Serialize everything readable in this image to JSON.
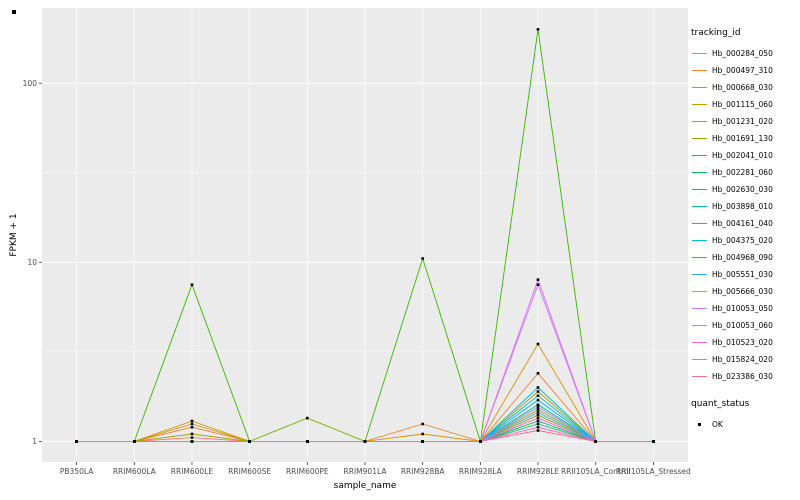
{
  "chart_data": {
    "type": "line",
    "title": "",
    "xlabel": "sample_name",
    "ylabel": "FPKM + 1",
    "y_scale": "log10",
    "y_ticks": [
      1,
      10,
      100
    ],
    "y_minor_ticks": [
      3.162,
      31.62
    ],
    "ylim": [
      0.77,
      263
    ],
    "grid": true,
    "panel_color": "#EBEBEB",
    "grid_color": "#FFFFFF",
    "point_color": "#000000",
    "tick_label_color": "#4D4D4D",
    "legend_position": "right",
    "legend_title": "tracking_id",
    "categories": [
      "PB350LA",
      "RRIM600LA",
      "RRIM600LE",
      "RRIM600SE",
      "RRIM600PE",
      "RRIM901LA",
      "RRIM928BA",
      "RRIM928LA",
      "RRIM928LE",
      "RRII105LA_Control",
      "RRII105LA_Stressed"
    ],
    "series": [
      {
        "name": "Hb_000284_050",
        "color": "#F8766D",
        "values": [
          1,
          1,
          1.05,
          1,
          1,
          1,
          1,
          1,
          1.6,
          1,
          1
        ]
      },
      {
        "name": "Hb_000497_310",
        "color": "#EA8331",
        "values": [
          1,
          1,
          1.2,
          1,
          1,
          1,
          1.25,
          1,
          2.4,
          1,
          1
        ]
      },
      {
        "name": "Hb_000668_030",
        "color": "#D89000",
        "values": [
          1,
          1,
          1.3,
          1,
          1,
          1,
          1.1,
          1,
          3.5,
          1,
          1
        ]
      },
      {
        "name": "Hb_001115_060",
        "color": "#C09B00",
        "values": [
          1,
          1,
          1.25,
          1,
          1,
          1,
          1,
          1,
          1.9,
          1,
          1
        ]
      },
      {
        "name": "Hb_001231_020",
        "color": "#A3A500",
        "values": [
          1,
          1,
          1.1,
          1,
          1,
          1,
          1,
          1,
          1.5,
          1,
          1
        ]
      },
      {
        "name": "Hb_001691_130",
        "color": "#7CAE00",
        "values": [
          1,
          1,
          1,
          1,
          1.35,
          1,
          1,
          1,
          1.4,
          1,
          1
        ]
      },
      {
        "name": "Hb_002041_010",
        "color": "#39B600",
        "values": [
          1,
          1,
          7.5,
          1,
          1,
          1,
          10.5,
          1,
          200,
          1,
          1
        ]
      },
      {
        "name": "Hb_002281_060",
        "color": "#00BB4E",
        "values": [
          1,
          1,
          1,
          1,
          1,
          1,
          1,
          1,
          1.3,
          1,
          1
        ]
      },
      {
        "name": "Hb_002630_030",
        "color": "#00BF7D",
        "values": [
          1,
          1,
          1,
          1,
          1,
          1,
          1,
          1,
          1.25,
          1,
          1
        ]
      },
      {
        "name": "Hb_003898_010",
        "color": "#00C1A3",
        "values": [
          1,
          1,
          1,
          1,
          1,
          1,
          1,
          1,
          1.6,
          1,
          1
        ]
      },
      {
        "name": "Hb_004161_040",
        "color": "#00BFC4",
        "values": [
          1,
          1,
          1,
          1,
          1,
          1,
          1,
          1,
          1.8,
          1,
          1
        ]
      },
      {
        "name": "Hb_004375_020",
        "color": "#00BAE0",
        "values": [
          1,
          1,
          1,
          1,
          1,
          1,
          1,
          1,
          2.0,
          1,
          1
        ]
      },
      {
        "name": "Hb_004968_090",
        "color": "#00B0F6",
        "values": [
          1,
          1,
          1,
          1,
          1,
          1,
          1,
          1,
          1.7,
          1,
          1
        ]
      },
      {
        "name": "Hb_005551_030",
        "color": "#35A2FF",
        "values": [
          1,
          1,
          1,
          1,
          1,
          1,
          1,
          1,
          1.45,
          1,
          1
        ]
      },
      {
        "name": "Hb_005666_030",
        "color": "#9590FF",
        "values": [
          1,
          1,
          1,
          1,
          1,
          1,
          1,
          1,
          1.55,
          1,
          1
        ]
      },
      {
        "name": "Hb_010053_050",
        "color": "#C77CFF",
        "values": [
          1,
          1,
          1,
          1,
          1,
          1,
          1,
          1,
          7.5,
          1,
          1
        ]
      },
      {
        "name": "Hb_010053_060",
        "color": "#E76BF3",
        "values": [
          1,
          1,
          1,
          1,
          1,
          1,
          1,
          1,
          8,
          1,
          1
        ]
      },
      {
        "name": "Hb_010523_020",
        "color": "#FA62DB",
        "values": [
          1,
          1,
          1,
          1,
          1,
          1,
          1,
          1,
          1.35,
          1,
          1
        ]
      },
      {
        "name": "Hb_015824_020",
        "color": "#FF62BC",
        "values": [
          1,
          1,
          1,
          1,
          1,
          1,
          1,
          1,
          1.2,
          1,
          1
        ]
      },
      {
        "name": "Hb_023386_030",
        "color": "#FF6A98",
        "values": [
          1,
          1,
          1,
          1,
          1,
          1,
          1,
          1,
          1.15,
          1,
          1
        ]
      }
    ],
    "quant_legend": {
      "title": "quant_status",
      "items": [
        {
          "label": "OK",
          "shape": "square-point",
          "color": "#000000"
        }
      ]
    }
  }
}
